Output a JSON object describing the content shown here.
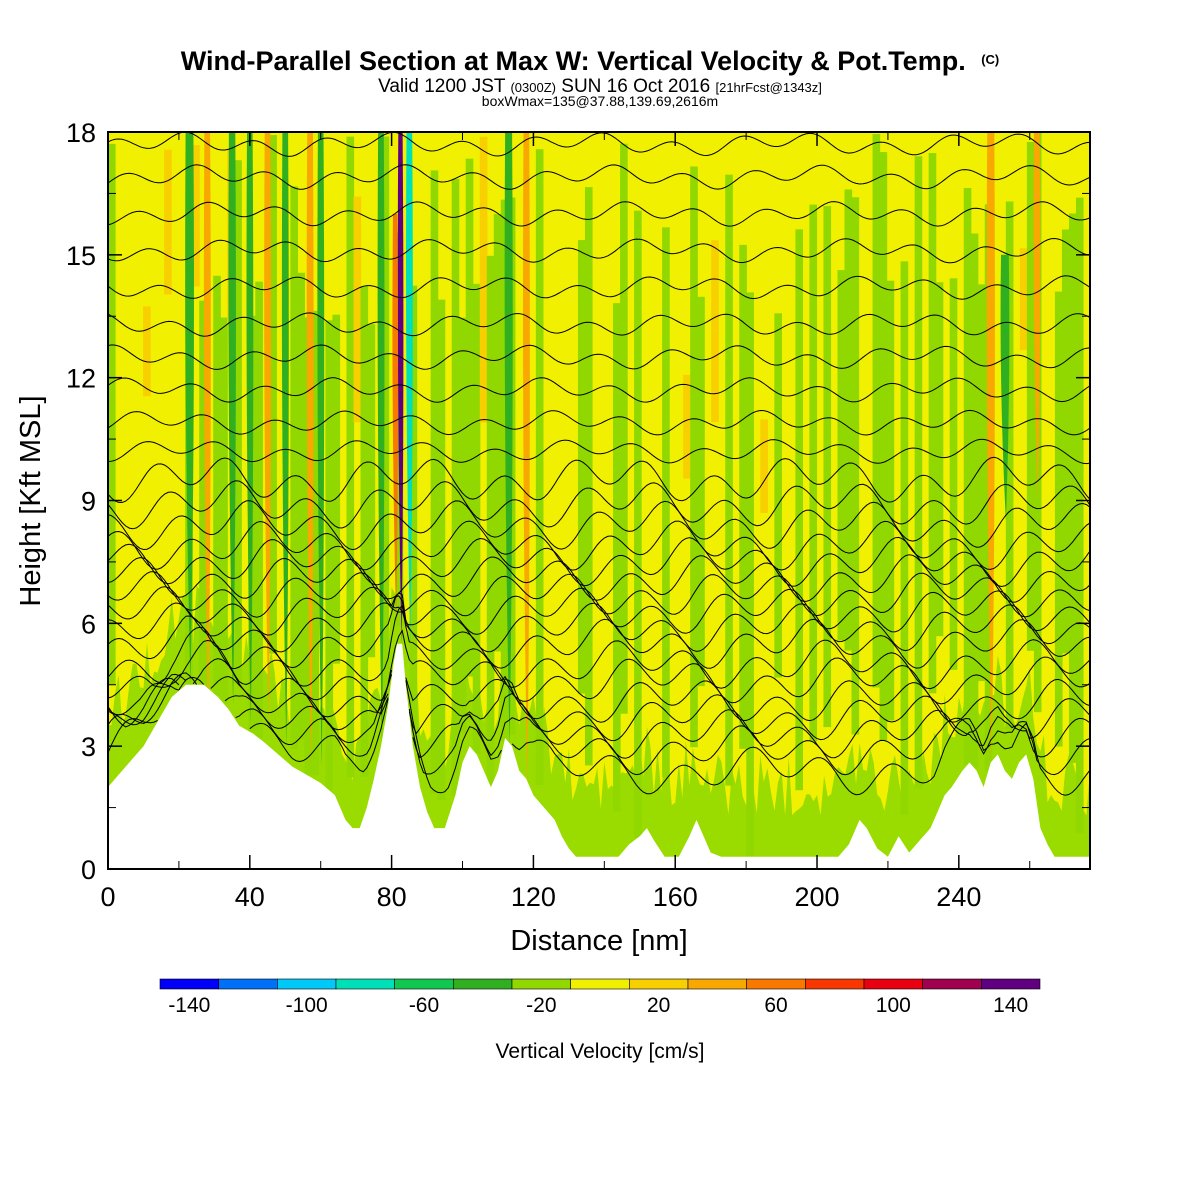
{
  "header": {
    "title": "Wind-Parallel Section at Max W: Vertical Velocity & Pot.Temp.",
    "title_mark": "(C)",
    "valid_prefix": "Valid 1200 JST",
    "valid_utc": "(0300Z)",
    "valid_date": "SUN 16 Oct 2016",
    "forecast": "[21hrFcst@1343z]",
    "box_info": "boxWmax=135@37.88,139.69,2616m"
  },
  "chart_data": {
    "type": "heatmap",
    "title": "Wind-Parallel Section at Max W: Vertical Velocity & Pot.Temp.",
    "xlabel": "Distance [nm]",
    "ylabel": "Height [Kft MSL]",
    "xlim": [
      0,
      277
    ],
    "ylim": [
      0,
      18
    ],
    "x_ticks": [
      0,
      40,
      80,
      120,
      160,
      200,
      240
    ],
    "x_tick_labels": [
      "0",
      "40",
      "80",
      "120",
      "160",
      "200",
      "240"
    ],
    "y_ticks": [
      0,
      3,
      6,
      9,
      12,
      15,
      18
    ],
    "y_tick_labels": [
      "0",
      "3",
      "6",
      "9",
      "12",
      "15",
      "18"
    ],
    "background_color": "#f0f000",
    "colorbar": {
      "label": "Vertical Velocity [cm/s]",
      "levels": [
        -150,
        -130,
        -110,
        -90,
        -70,
        -50,
        -30,
        -10,
        10,
        30,
        50,
        70,
        90,
        110,
        130,
        150
      ],
      "tick_values": [
        -140,
        -100,
        -60,
        -20,
        20,
        60,
        100,
        140
      ],
      "tick_labels": [
        "-140",
        "-100",
        "-60",
        "-20",
        "20",
        "60",
        "100",
        "140"
      ],
      "colors": [
        "#0000f8",
        "#0070f8",
        "#00c8f8",
        "#00e0b8",
        "#10c850",
        "#30b020",
        "#90d800",
        "#f0f000",
        "#f8d000",
        "#f8a800",
        "#f87800",
        "#f83800",
        "#e80010",
        "#a00050",
        "#600080"
      ]
    },
    "terrain": [
      [
        0,
        2.0
      ],
      [
        3,
        2.3
      ],
      [
        6,
        2.6
      ],
      [
        10,
        3.0
      ],
      [
        14,
        3.6
      ],
      [
        18,
        4.2
      ],
      [
        22,
        4.5
      ],
      [
        27,
        4.5
      ],
      [
        31,
        4.2
      ],
      [
        34,
        3.9
      ],
      [
        37,
        3.5
      ],
      [
        41,
        3.3
      ],
      [
        44,
        3.1
      ],
      [
        48,
        2.8
      ],
      [
        52,
        2.5
      ],
      [
        56,
        2.3
      ],
      [
        60,
        2.1
      ],
      [
        64,
        1.8
      ],
      [
        67,
        1.2
      ],
      [
        69,
        1.0
      ],
      [
        71,
        1.0
      ],
      [
        73,
        1.5
      ],
      [
        75,
        2.2
      ],
      [
        77,
        3.0
      ],
      [
        79,
        4.0
      ],
      [
        80.5,
        5.0
      ],
      [
        81.5,
        5.5
      ],
      [
        83,
        5.5
      ],
      [
        84,
        4.5
      ],
      [
        86,
        3.0
      ],
      [
        88,
        2.0
      ],
      [
        90,
        1.4
      ],
      [
        92,
        1.0
      ],
      [
        95,
        1.0
      ],
      [
        98,
        1.8
      ],
      [
        100,
        2.6
      ],
      [
        102,
        3.0
      ],
      [
        104,
        2.8
      ],
      [
        106,
        2.4
      ],
      [
        108,
        2.0
      ],
      [
        110,
        2.4
      ],
      [
        112,
        3.2
      ],
      [
        114,
        3.0
      ],
      [
        116,
        2.4
      ],
      [
        118,
        2.2
      ],
      [
        120,
        1.8
      ],
      [
        123,
        1.5
      ],
      [
        126,
        1.2
      ],
      [
        128,
        0.8
      ],
      [
        130,
        0.5
      ],
      [
        132,
        0.3
      ],
      [
        136,
        0.3
      ],
      [
        141,
        0.3
      ],
      [
        144,
        0.3
      ],
      [
        147,
        0.6
      ],
      [
        150,
        0.8
      ],
      [
        152,
        1.0
      ],
      [
        154,
        0.7
      ],
      [
        157,
        0.3
      ],
      [
        161,
        0.3
      ],
      [
        164,
        0.8
      ],
      [
        166,
        1.2
      ],
      [
        168,
        0.8
      ],
      [
        170,
        0.4
      ],
      [
        173,
        0.3
      ],
      [
        185,
        0.3
      ],
      [
        196,
        0.3
      ],
      [
        206,
        0.3
      ],
      [
        209,
        0.6
      ],
      [
        212,
        1.2
      ],
      [
        214,
        1.0
      ],
      [
        217,
        0.5
      ],
      [
        220,
        0.3
      ],
      [
        223,
        0.8
      ],
      [
        226,
        0.4
      ],
      [
        229,
        0.7
      ],
      [
        232,
        1.0
      ],
      [
        234,
        1.4
      ],
      [
        236,
        1.8
      ],
      [
        238,
        2.0
      ],
      [
        241,
        2.4
      ],
      [
        243,
        2.6
      ],
      [
        245,
        2.4
      ],
      [
        247,
        2.0
      ],
      [
        249,
        2.6
      ],
      [
        251,
        2.8
      ],
      [
        253,
        2.4
      ],
      [
        255,
        2.2
      ],
      [
        257,
        2.6
      ],
      [
        259,
        2.8
      ],
      [
        261,
        2.2
      ],
      [
        263,
        1.0
      ],
      [
        265,
        0.6
      ],
      [
        267,
        0.3
      ],
      [
        270,
        0.3
      ],
      [
        273,
        0.3
      ],
      [
        277,
        0.3
      ]
    ],
    "vertical_velocity_features": [
      {
        "x": 82.5,
        "y_min": 5.5,
        "y_max": 18,
        "w": 1.2,
        "value": 140
      },
      {
        "x": 85.0,
        "y_min": 5.5,
        "y_max": 18,
        "w": 1.6,
        "value": -90
      },
      {
        "x": 81.0,
        "y_min": 6.0,
        "y_max": 16,
        "w": 1.2,
        "value": 60
      },
      {
        "x": 23.0,
        "y_min": 4.5,
        "y_max": 18,
        "w": 2.2,
        "value": -40
      },
      {
        "x": 28.0,
        "y_min": 3.5,
        "y_max": 18,
        "w": 1.6,
        "value": 40
      },
      {
        "x": 35.0,
        "y_min": 4.0,
        "y_max": 18,
        "w": 1.8,
        "value": -40
      },
      {
        "x": 40.0,
        "y_min": 3.5,
        "y_max": 18,
        "w": 1.6,
        "value": -40
      },
      {
        "x": 45.0,
        "y_min": 3.5,
        "y_max": 18,
        "w": 1.6,
        "value": 40
      },
      {
        "x": 50.0,
        "y_min": 3.0,
        "y_max": 18,
        "w": 1.6,
        "value": -40
      },
      {
        "x": 57.0,
        "y_min": 2.5,
        "y_max": 18,
        "w": 1.6,
        "value": 40
      },
      {
        "x": 60.0,
        "y_min": 2.5,
        "y_max": 18,
        "w": 1.6,
        "value": -40
      },
      {
        "x": 77.0,
        "y_min": 3.0,
        "y_max": 18,
        "w": 1.6,
        "value": -40
      },
      {
        "x": 113.0,
        "y_min": 3.0,
        "y_max": 18,
        "w": 2.0,
        "value": -40
      },
      {
        "x": 118.0,
        "y_min": 2.0,
        "y_max": 18,
        "w": 1.6,
        "value": 40
      },
      {
        "x": 249.0,
        "y_min": 2.6,
        "y_max": 18,
        "w": 2.0,
        "value": 40
      },
      {
        "x": 253.0,
        "y_min": 8.5,
        "y_max": 15.0,
        "w": 2.2,
        "value": -40
      },
      {
        "x": 262.0,
        "y_min": 9.0,
        "y_max": 18,
        "w": 1.6,
        "value": 40
      }
    ],
    "theta_contours": {
      "levels_kft": [
        2.4,
        2.9,
        3.3,
        3.7,
        4.1,
        4.6,
        5.0,
        5.5,
        5.9,
        6.3,
        6.7,
        7.1,
        7.5,
        7.9,
        8.4,
        8.9,
        9.5,
        10.2,
        10.9,
        11.7,
        12.5,
        13.3,
        14.2,
        15.1,
        16.0,
        16.9,
        17.7
      ]
    }
  },
  "colors": {
    "frame": "#000000",
    "contour": "#000000",
    "ground": "#ffffff"
  }
}
